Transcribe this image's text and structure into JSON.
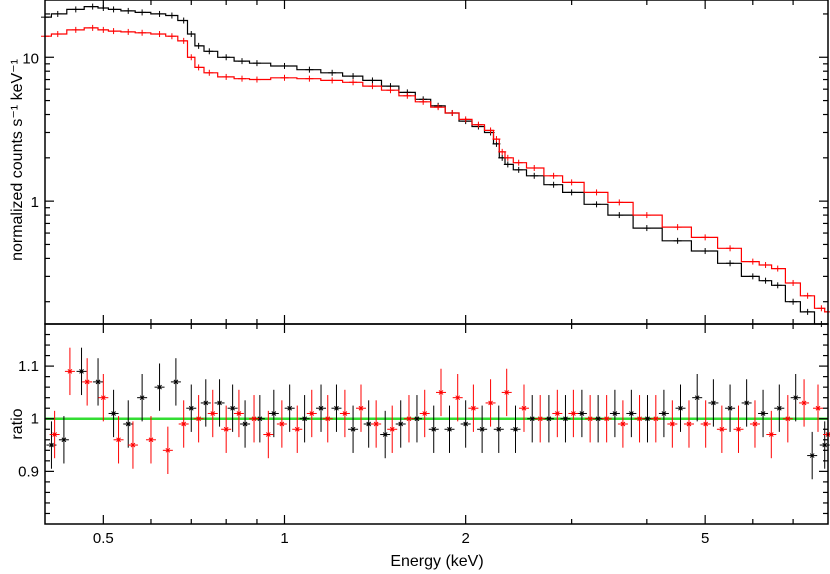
{
  "chart_data": [
    {
      "type": "scatter",
      "panel": "spectrum",
      "ylabel": "normalized counts s⁻¹ keV⁻¹",
      "xscale": "log",
      "yscale": "log",
      "xlim": [
        0.4,
        8.0
      ],
      "ylim": [
        0.14,
        25
      ],
      "yticks": [
        1,
        10
      ],
      "ytick_labels": [
        "1",
        "10"
      ],
      "colors": {
        "series_black": "#000000",
        "series_red": "#ff0000"
      },
      "series": [
        {
          "name": "black",
          "x": [
            0.4,
            0.42,
            0.45,
            0.48,
            0.5,
            0.52,
            0.55,
            0.58,
            0.62,
            0.65,
            0.68,
            0.7,
            0.72,
            0.75,
            0.8,
            0.85,
            0.9,
            1.0,
            1.1,
            1.2,
            1.3,
            1.4,
            1.5,
            1.6,
            1.7,
            1.8,
            1.9,
            2.0,
            2.1,
            2.2,
            2.25,
            2.3,
            2.35,
            2.45,
            2.6,
            2.8,
            3.0,
            3.3,
            3.6,
            4.0,
            4.5,
            5.0,
            5.5,
            6.0,
            6.3,
            6.6,
            7.0,
            7.4,
            7.8,
            8.0
          ],
          "y": [
            19,
            20,
            21.5,
            22.5,
            22,
            21.5,
            21,
            20.5,
            20,
            19.5,
            18,
            14.5,
            12,
            11,
            10,
            9.4,
            9.1,
            8.7,
            8.2,
            7.8,
            7.4,
            6.9,
            6.3,
            5.7,
            5.1,
            4.6,
            4.1,
            3.6,
            3.3,
            3.0,
            2.5,
            2.0,
            1.8,
            1.65,
            1.5,
            1.3,
            1.15,
            0.95,
            0.8,
            0.65,
            0.53,
            0.45,
            0.37,
            0.3,
            0.28,
            0.26,
            0.2,
            0.17,
            0.14,
            0.13
          ]
        },
        {
          "name": "red",
          "x": [
            0.4,
            0.42,
            0.45,
            0.48,
            0.5,
            0.52,
            0.55,
            0.58,
            0.62,
            0.65,
            0.68,
            0.7,
            0.72,
            0.75,
            0.8,
            0.85,
            0.9,
            1.0,
            1.1,
            1.2,
            1.3,
            1.4,
            1.5,
            1.6,
            1.7,
            1.8,
            1.9,
            2.0,
            2.1,
            2.2,
            2.25,
            2.3,
            2.35,
            2.45,
            2.6,
            2.8,
            3.0,
            3.3,
            3.6,
            4.0,
            4.5,
            5.0,
            5.5,
            6.0,
            6.3,
            6.6,
            7.0,
            7.4,
            7.8,
            8.0
          ],
          "y": [
            14,
            14.5,
            15.5,
            16,
            15.5,
            15.2,
            15,
            14.8,
            14.5,
            14,
            13,
            10,
            8.5,
            7.8,
            7.3,
            7.1,
            7.0,
            7.2,
            7.1,
            6.9,
            6.7,
            6.3,
            5.9,
            5.4,
            4.9,
            4.5,
            4.1,
            3.7,
            3.4,
            3.1,
            2.7,
            2.2,
            2.0,
            1.85,
            1.7,
            1.5,
            1.35,
            1.15,
            0.98,
            0.8,
            0.66,
            0.56,
            0.47,
            0.38,
            0.36,
            0.34,
            0.27,
            0.22,
            0.18,
            0.17
          ]
        }
      ]
    },
    {
      "type": "scatter",
      "panel": "ratio",
      "xlabel": "Energy (keV)",
      "ylabel": "ratio",
      "xscale": "log",
      "xlim": [
        0.4,
        8.0
      ],
      "ylim": [
        0.8,
        1.18
      ],
      "yticks": [
        0.9,
        1,
        1.1
      ],
      "ytick_labels": [
        "0.9",
        "1",
        "1.1"
      ],
      "xticks": [
        0.5,
        1,
        2,
        5
      ],
      "xtick_labels": [
        "0.5",
        "1",
        "2",
        "5"
      ],
      "reference_line": {
        "y": 1,
        "color": "#33dd33"
      },
      "series": [
        {
          "name": "black",
          "x": [
            0.41,
            0.43,
            0.46,
            0.49,
            0.52,
            0.55,
            0.58,
            0.62,
            0.66,
            0.7,
            0.74,
            0.78,
            0.82,
            0.86,
            0.91,
            0.96,
            1.02,
            1.08,
            1.15,
            1.22,
            1.3,
            1.38,
            1.47,
            1.56,
            1.66,
            1.77,
            1.88,
            2.0,
            2.13,
            2.27,
            2.42,
            2.58,
            2.75,
            2.93,
            3.12,
            3.32,
            3.54,
            3.77,
            4.01,
            4.27,
            4.55,
            4.85,
            5.16,
            5.5,
            5.86,
            6.24,
            6.64,
            7.07,
            7.53,
            7.9
          ],
          "y": [
            0.95,
            0.96,
            1.09,
            1.07,
            1.01,
            0.99,
            1.04,
            1.06,
            1.07,
            1.02,
            1.03,
            1.03,
            1.02,
            0.99,
            1.0,
            1.01,
            1.02,
            1.0,
            1.02,
            1.02,
            0.98,
            0.99,
            0.97,
            0.99,
            1.0,
            0.98,
            0.98,
            0.99,
            0.98,
            0.98,
            0.98,
            1.0,
            1.0,
            1.0,
            1.01,
            1.0,
            1.01,
            1.01,
            1.0,
            1.01,
            1.02,
            1.04,
            1.03,
            1.02,
            1.03,
            1.01,
            1.02,
            1.04,
            0.93,
            0.95
          ]
        },
        {
          "name": "red",
          "x": [
            0.415,
            0.44,
            0.47,
            0.5,
            0.53,
            0.56,
            0.6,
            0.64,
            0.68,
            0.72,
            0.76,
            0.8,
            0.84,
            0.89,
            0.94,
            0.99,
            1.05,
            1.11,
            1.18,
            1.26,
            1.34,
            1.42,
            1.51,
            1.61,
            1.71,
            1.82,
            1.94,
            2.06,
            2.2,
            2.34,
            2.5,
            2.66,
            2.84,
            3.02,
            3.22,
            3.43,
            3.65,
            3.89,
            4.14,
            4.41,
            4.7,
            5.01,
            5.33,
            5.68,
            6.05,
            6.44,
            6.86,
            7.3,
            7.7,
            8.0
          ],
          "y": [
            0.97,
            1.09,
            1.07,
            1.04,
            0.96,
            0.95,
            0.96,
            0.94,
            0.99,
            1.0,
            1.01,
            0.98,
            1.01,
            1.0,
            0.97,
            0.99,
            0.98,
            1.01,
            1.0,
            1.01,
            1.02,
            0.99,
            0.98,
            1.0,
            1.01,
            1.05,
            1.04,
            1.02,
            1.03,
            1.05,
            1.02,
            1.0,
            1.01,
            1.01,
            1.0,
            1.0,
            0.99,
            1.0,
            1.0,
            0.99,
            0.99,
            0.99,
            0.98,
            0.98,
            0.99,
            0.97,
            1.0,
            1.03,
            1.02,
            0.97
          ]
        }
      ]
    }
  ]
}
